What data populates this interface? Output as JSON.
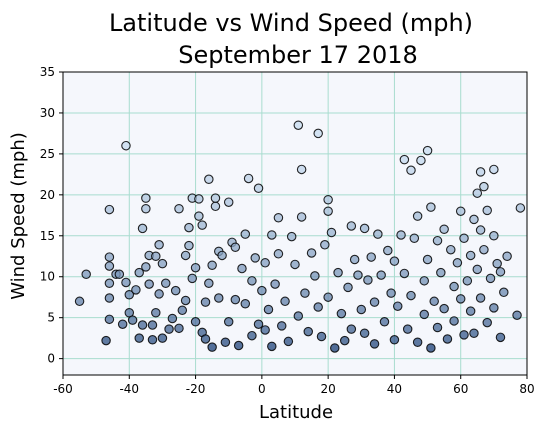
{
  "chart_data": {
    "type": "scatter",
    "title_lines": [
      "Latitude vs Wind Speed (mph)",
      "September 17 2018"
    ],
    "xlabel": "Latitude",
    "ylabel": "Wind Speed (mph)",
    "xlim": [
      -60,
      80
    ],
    "ylim": [
      -2,
      35
    ],
    "x_ticks": [
      -60,
      -40,
      -20,
      0,
      20,
      40,
      60,
      80
    ],
    "y_ticks": [
      0,
      5,
      10,
      15,
      20,
      25,
      30,
      35
    ],
    "grid": true,
    "colors": {
      "background": "#f5f7fc",
      "grid": "#a8dccf",
      "marker_edge": "#000000",
      "colormap": [
        "#c6dbef",
        "#08306b"
      ]
    },
    "points": [
      [
        -55,
        7
      ],
      [
        -53,
        10.3
      ],
      [
        -47,
        2.2
      ],
      [
        -46,
        4.8
      ],
      [
        -46,
        7.4
      ],
      [
        -46,
        9.2
      ],
      [
        -46,
        11.3
      ],
      [
        -46,
        12.4
      ],
      [
        -46,
        18.2
      ],
      [
        -44,
        10.3
      ],
      [
        -43,
        10.3
      ],
      [
        -42,
        4.2
      ],
      [
        -41,
        26
      ],
      [
        -41,
        9.3
      ],
      [
        -40,
        5.6
      ],
      [
        -40,
        7.8
      ],
      [
        -39,
        4.7
      ],
      [
        -38,
        8.4
      ],
      [
        -37,
        10.5
      ],
      [
        -37,
        2.5
      ],
      [
        -36,
        4.1
      ],
      [
        -36,
        15.9
      ],
      [
        -35,
        18.3
      ],
      [
        -35,
        19.6
      ],
      [
        -35,
        11.2
      ],
      [
        -34,
        12.6
      ],
      [
        -34,
        9.1
      ],
      [
        -33,
        4.1
      ],
      [
        -33,
        2.3
      ],
      [
        -32,
        5.6
      ],
      [
        -32,
        12.5
      ],
      [
        -31,
        13.9
      ],
      [
        -31,
        7.9
      ],
      [
        -30,
        11.6
      ],
      [
        -30,
        2.5
      ],
      [
        -29,
        9.2
      ],
      [
        -28,
        3.6
      ],
      [
        -27,
        4.9
      ],
      [
        -26,
        8.3
      ],
      [
        -25,
        3.7
      ],
      [
        -25,
        18.3
      ],
      [
        -24,
        5.9
      ],
      [
        -23,
        7.1
      ],
      [
        -23,
        12.6
      ],
      [
        -22,
        13.8
      ],
      [
        -22,
        16.0
      ],
      [
        -21,
        19.6
      ],
      [
        -21,
        9.8
      ],
      [
        -20,
        4.5
      ],
      [
        -20,
        11.1
      ],
      [
        -19,
        17.4
      ],
      [
        -19,
        19.5
      ],
      [
        -18,
        16.3
      ],
      [
        -18,
        3.2
      ],
      [
        -17,
        2.4
      ],
      [
        -17,
        6.9
      ],
      [
        -16,
        21.9
      ],
      [
        -16,
        9.2
      ],
      [
        -15,
        11.4
      ],
      [
        -15,
        1.4
      ],
      [
        -14,
        18.6
      ],
      [
        -14,
        19.6
      ],
      [
        -13,
        13.1
      ],
      [
        -13,
        7.4
      ],
      [
        -12,
        12.6
      ],
      [
        -11,
        2.0
      ],
      [
        -10,
        19.1
      ],
      [
        -10,
        4.5
      ],
      [
        -9,
        14.2
      ],
      [
        -8,
        13.6
      ],
      [
        -8,
        7.2
      ],
      [
        -7,
        1.6
      ],
      [
        -6,
        11.0
      ],
      [
        -5,
        15.2
      ],
      [
        -5,
        6.7
      ],
      [
        -4,
        22.0
      ],
      [
        -3,
        9.5
      ],
      [
        -3,
        2.8
      ],
      [
        -2,
        12.3
      ],
      [
        -1,
        20.8
      ],
      [
        -1,
        4.2
      ],
      [
        0,
        8.3
      ],
      [
        1,
        3.5
      ],
      [
        1,
        11.7
      ],
      [
        2,
        6.0
      ],
      [
        3,
        15.1
      ],
      [
        3,
        1.5
      ],
      [
        4,
        9.1
      ],
      [
        5,
        17.2
      ],
      [
        5,
        12.8
      ],
      [
        6,
        4.0
      ],
      [
        7,
        7.0
      ],
      [
        8,
        2.1
      ],
      [
        9,
        14.9
      ],
      [
        10,
        11.5
      ],
      [
        11,
        5.2
      ],
      [
        11,
        28.5
      ],
      [
        12,
        23.1
      ],
      [
        12,
        17.3
      ],
      [
        13,
        8.0
      ],
      [
        14,
        3.3
      ],
      [
        15,
        12.9
      ],
      [
        16,
        10.1
      ],
      [
        17,
        6.3
      ],
      [
        17,
        27.5
      ],
      [
        18,
        2.7
      ],
      [
        19,
        13.9
      ],
      [
        20,
        19.4
      ],
      [
        20,
        18.0
      ],
      [
        20,
        7.5
      ],
      [
        21,
        15.4
      ],
      [
        22,
        1.3
      ],
      [
        23,
        10.5
      ],
      [
        24,
        5.5
      ],
      [
        25,
        2.2
      ],
      [
        26,
        8.7
      ],
      [
        27,
        16.2
      ],
      [
        27,
        3.6
      ],
      [
        28,
        12.1
      ],
      [
        29,
        10.2
      ],
      [
        30,
        6.0
      ],
      [
        31,
        3.1
      ],
      [
        31,
        15.9
      ],
      [
        32,
        9.6
      ],
      [
        33,
        12.4
      ],
      [
        34,
        1.8
      ],
      [
        34,
        6.9
      ],
      [
        35,
        15.2
      ],
      [
        36,
        10.2
      ],
      [
        37,
        4.5
      ],
      [
        38,
        13.2
      ],
      [
        39,
        8.0
      ],
      [
        40,
        2.3
      ],
      [
        40,
        11.9
      ],
      [
        41,
        6.4
      ],
      [
        42,
        15.1
      ],
      [
        43,
        24.3
      ],
      [
        43,
        10.4
      ],
      [
        44,
        3.6
      ],
      [
        45,
        7.7
      ],
      [
        45,
        23.0
      ],
      [
        46,
        14.7
      ],
      [
        47,
        2.0
      ],
      [
        47,
        17.4
      ],
      [
        48,
        24.2
      ],
      [
        49,
        9.5
      ],
      [
        49,
        5.4
      ],
      [
        50,
        25.4
      ],
      [
        50,
        12.1
      ],
      [
        51,
        1.3
      ],
      [
        51,
        18.5
      ],
      [
        52,
        7.0
      ],
      [
        53,
        3.8
      ],
      [
        53,
        14.4
      ],
      [
        54,
        10.5
      ],
      [
        55,
        6.1
      ],
      [
        55,
        15.8
      ],
      [
        56,
        2.4
      ],
      [
        57,
        13.3
      ],
      [
        58,
        8.8
      ],
      [
        58,
        4.6
      ],
      [
        59,
        11.7
      ],
      [
        60,
        18.0
      ],
      [
        60,
        7.3
      ],
      [
        61,
        2.9
      ],
      [
        61,
        14.7
      ],
      [
        62,
        9.5
      ],
      [
        63,
        12.6
      ],
      [
        63,
        5.8
      ],
      [
        64,
        3.1
      ],
      [
        64,
        17.0
      ],
      [
        65,
        10.9
      ],
      [
        65,
        20.2
      ],
      [
        66,
        22.8
      ],
      [
        66,
        7.4
      ],
      [
        66,
        15.7
      ],
      [
        67,
        21.0
      ],
      [
        67,
        13.3
      ],
      [
        68,
        18.1
      ],
      [
        68,
        4.4
      ],
      [
        69,
        9.8
      ],
      [
        70,
        23.1
      ],
      [
        70,
        15.0
      ],
      [
        70,
        6.2
      ],
      [
        71,
        11.6
      ],
      [
        72,
        2.6
      ],
      [
        72,
        10.6
      ],
      [
        73,
        8.1
      ],
      [
        74,
        12.5
      ],
      [
        77,
        5.3
      ],
      [
        78,
        18.4
      ]
    ]
  }
}
